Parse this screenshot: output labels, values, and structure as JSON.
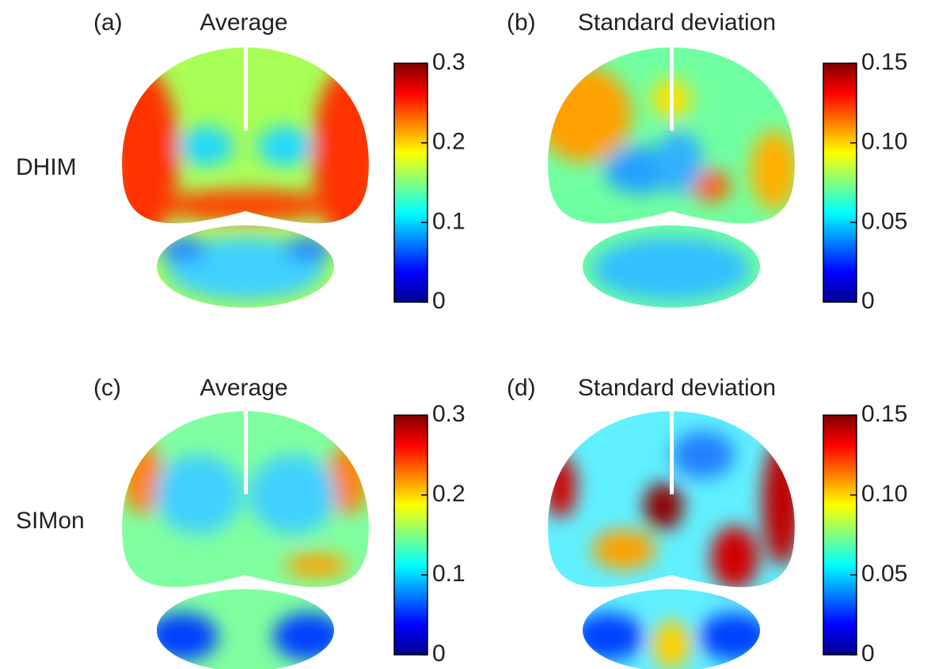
{
  "row_labels": [
    "DHIM",
    "SIMon"
  ],
  "panels": [
    {
      "label": "(a)",
      "title": "Average",
      "colorbar": {
        "lim": [
          0,
          0.3
        ],
        "ticks": [
          0,
          0.1,
          0.2,
          0.3
        ]
      }
    },
    {
      "label": "(b)",
      "title": "Standard deviation",
      "colorbar": {
        "lim": [
          0,
          0.15
        ],
        "ticks": [
          0,
          0.05,
          {
            "value": 0.1,
            "label": "0.10"
          },
          0.15
        ]
      }
    },
    {
      "label": "(c)",
      "title": "Average",
      "colorbar": {
        "lim": [
          0,
          0.3
        ],
        "ticks": [
          0,
          0.1,
          0.2,
          0.3
        ]
      }
    },
    {
      "label": "(d)",
      "title": "Standard deviation",
      "colorbar": {
        "lim": [
          0,
          0.15
        ],
        "ticks": [
          0,
          0.05,
          {
            "value": 0.1,
            "label": "0.10"
          },
          0.15
        ]
      }
    }
  ]
}
